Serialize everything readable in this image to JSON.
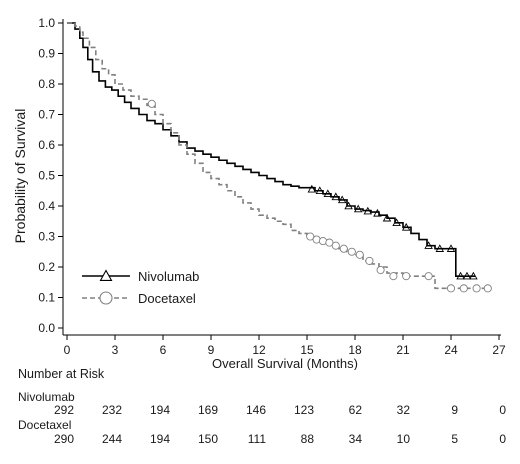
{
  "chart_data": {
    "type": "line",
    "xlabel": "Overall Survival (Months)",
    "ylabel": "Probability of Survival",
    "xlim": [
      0,
      27
    ],
    "ylim": [
      0,
      1.0
    ],
    "xticks": [
      "0",
      "3",
      "6",
      "9",
      "12",
      "15",
      "18",
      "21",
      "24",
      "27"
    ],
    "yticks": [
      "0.0",
      "0.1",
      "0.2",
      "0.3",
      "0.4",
      "0.5",
      "0.6",
      "0.7",
      "0.8",
      "0.9",
      "1.0"
    ],
    "grid": false,
    "legend_position": "bottom-left",
    "series": [
      {
        "name": "Nivolumab",
        "line_style": "solid",
        "marker": "triangle",
        "color": "#000000",
        "x": [
          0,
          0.2,
          0.5,
          0.8,
          1.0,
          1.3,
          1.6,
          2.0,
          2.4,
          2.8,
          3.2,
          3.6,
          4.0,
          4.5,
          5.0,
          5.5,
          6.0,
          6.5,
          7.0,
          7.5,
          8.0,
          8.5,
          9.0,
          9.5,
          10.0,
          10.5,
          11.0,
          11.5,
          12.0,
          12.5,
          13.0,
          13.5,
          14.0,
          14.5,
          15.0,
          15.5,
          16.0,
          16.5,
          17.0,
          17.5,
          18.0,
          18.5,
          19.0,
          19.5,
          20.0,
          20.5,
          21.0,
          21.5,
          22.0,
          22.5,
          23.0,
          23.5,
          24.0,
          24.3,
          24.3,
          25.5
        ],
        "y": [
          1.0,
          1.0,
          0.98,
          0.95,
          0.92,
          0.88,
          0.84,
          0.81,
          0.79,
          0.78,
          0.76,
          0.74,
          0.72,
          0.7,
          0.68,
          0.67,
          0.65,
          0.63,
          0.61,
          0.59,
          0.58,
          0.57,
          0.56,
          0.55,
          0.54,
          0.53,
          0.52,
          0.51,
          0.5,
          0.49,
          0.48,
          0.47,
          0.465,
          0.46,
          0.46,
          0.45,
          0.44,
          0.43,
          0.42,
          0.4,
          0.39,
          0.385,
          0.38,
          0.37,
          0.36,
          0.345,
          0.33,
          0.31,
          0.29,
          0.27,
          0.26,
          0.26,
          0.26,
          0.26,
          0.17,
          0.17
        ],
        "censor_x": [
          15.3,
          15.8,
          16.3,
          16.8,
          17.2,
          17.6,
          18.2,
          18.8,
          19.4,
          20.0,
          20.6,
          21.2,
          22.6,
          23.3,
          24.0,
          24.6,
          25.0,
          25.4
        ],
        "censor_y": [
          0.455,
          0.45,
          0.44,
          0.43,
          0.42,
          0.4,
          0.39,
          0.383,
          0.376,
          0.36,
          0.345,
          0.33,
          0.27,
          0.26,
          0.26,
          0.17,
          0.17,
          0.17
        ]
      },
      {
        "name": "Docetaxel",
        "line_style": "dashed",
        "marker": "circle",
        "color": "#808080",
        "x": [
          0,
          0.2,
          0.5,
          0.8,
          1.0,
          1.4,
          1.8,
          2.2,
          2.6,
          3.0,
          3.5,
          4.0,
          4.5,
          5.0,
          5.5,
          6.0,
          6.5,
          7.0,
          7.5,
          8.0,
          8.5,
          9.0,
          9.5,
          10.0,
          10.5,
          11.0,
          11.5,
          12.0,
          12.5,
          13.0,
          13.5,
          14.0,
          14.5,
          15.0,
          15.5,
          16.0,
          16.5,
          17.0,
          17.5,
          18.0,
          18.5,
          19.0,
          19.5,
          20.0,
          21.0,
          22.0,
          22.5,
          23.0,
          23.0,
          26.5
        ],
        "y": [
          1.0,
          1.0,
          0.99,
          0.97,
          0.95,
          0.92,
          0.88,
          0.85,
          0.83,
          0.8,
          0.78,
          0.76,
          0.75,
          0.73,
          0.7,
          0.67,
          0.64,
          0.6,
          0.57,
          0.54,
          0.51,
          0.49,
          0.47,
          0.45,
          0.43,
          0.41,
          0.39,
          0.37,
          0.36,
          0.35,
          0.34,
          0.32,
          0.31,
          0.3,
          0.29,
          0.28,
          0.27,
          0.26,
          0.25,
          0.24,
          0.22,
          0.21,
          0.2,
          0.18,
          0.17,
          0.17,
          0.17,
          0.17,
          0.13,
          0.13
        ],
        "censor_x": [
          5.3,
          15.2,
          15.6,
          16.0,
          16.4,
          16.8,
          17.3,
          17.8,
          18.3,
          18.9,
          19.6,
          20.4,
          21.2,
          22.6,
          24.0,
          24.8,
          25.6,
          26.3
        ],
        "censor_y": [
          0.735,
          0.3,
          0.29,
          0.285,
          0.28,
          0.27,
          0.26,
          0.25,
          0.24,
          0.22,
          0.19,
          0.17,
          0.17,
          0.17,
          0.13,
          0.13,
          0.13,
          0.13
        ]
      }
    ],
    "risk_table": {
      "heading": "Number at Risk",
      "rows": [
        {
          "label": "Nivolumab",
          "values": [
            "292",
            "232",
            "194",
            "169",
            "146",
            "123",
            "62",
            "32",
            "9",
            "0"
          ]
        },
        {
          "label": "Docetaxel",
          "values": [
            "290",
            "244",
            "194",
            "150",
            "111",
            "88",
            "34",
            "10",
            "5",
            "0"
          ]
        }
      ]
    }
  }
}
